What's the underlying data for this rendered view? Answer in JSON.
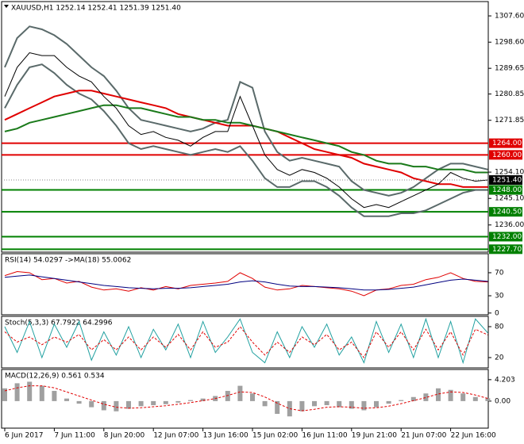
{
  "chart_data": [
    {
      "type": "price",
      "title": "XAUUSD,H1  1252.14 1252.41 1251.39 1251.40",
      "ylim": [
        1226.7,
        1312.5
      ],
      "yticks": [
        {
          "value": 1307.6,
          "label": "1307.60"
        },
        {
          "value": 1298.6,
          "label": "1298.60"
        },
        {
          "value": 1289.65,
          "label": "1289.65"
        },
        {
          "value": 1280.85,
          "label": "1280.85"
        },
        {
          "value": 1271.85,
          "label": "1271.85"
        },
        {
          "value": 1254.1,
          "label": "1254.10"
        },
        {
          "value": 1245.1,
          "label": "1245.10"
        },
        {
          "value": 1236,
          "label": "1236.00"
        }
      ],
      "levels": [
        {
          "value": 1264,
          "label": "1264.00",
          "color": "#e00000"
        },
        {
          "value": 1260,
          "label": "1260.00",
          "color": "#e00000"
        },
        {
          "value": 1248,
          "label": "1248.00",
          "color": "#008000"
        },
        {
          "value": 1240.5,
          "label": "1240.50",
          "color": "#008000"
        },
        {
          "value": 1232,
          "label": "1232.00",
          "color": "#008000"
        },
        {
          "value": 1227.7,
          "label": "1227.70",
          "color": "#008000"
        }
      ],
      "current": {
        "value": 1251.4,
        "label": "1251.40"
      },
      "series": [
        {
          "color": "#5a6a6a",
          "width": 2,
          "values": [
            1290,
            1300,
            1304,
            1303,
            1301,
            1298,
            1294,
            1290,
            1287,
            1282,
            1276,
            1272,
            1271,
            1270,
            1269,
            1268,
            1269,
            1271,
            1272,
            1285,
            1283,
            1268,
            1261,
            1258,
            1259,
            1258,
            1257,
            1256,
            1251,
            1248,
            1247,
            1246,
            1247,
            1249,
            1252,
            1255,
            1257,
            1257,
            1256,
            1255
          ]
        },
        {
          "color": "#5a6a6a",
          "width": 2,
          "values": [
            1276,
            1284,
            1290,
            1291,
            1288,
            1284,
            1281,
            1279,
            1275,
            1270,
            1264,
            1262,
            1263,
            1262,
            1261,
            1260,
            1261,
            1262,
            1261,
            1263,
            1258,
            1252,
            1249,
            1249,
            1251,
            1251,
            1249,
            1246,
            1242,
            1239,
            1239,
            1239,
            1240,
            1240,
            1241,
            1243,
            1245,
            1247,
            1248,
            1248
          ]
        },
        {
          "color": "#e00000",
          "width": 2,
          "values": [
            1272,
            1274,
            1276,
            1278,
            1280,
            1281,
            1282,
            1282,
            1281,
            1280,
            1279,
            1278,
            1277,
            1276,
            1274,
            1273,
            1272,
            1271,
            1270,
            1270,
            1270,
            1269,
            1268,
            1266,
            1264,
            1262,
            1261,
            1260,
            1259,
            1257,
            1256,
            1255,
            1254,
            1252,
            1251,
            1250,
            1250,
            1249,
            1249,
            1249
          ]
        },
        {
          "color": "#1a7a1a",
          "width": 2,
          "values": [
            1268,
            1269,
            1271,
            1272,
            1273,
            1274,
            1275,
            1276,
            1277,
            1277,
            1276,
            1276,
            1275,
            1274,
            1273,
            1273,
            1272,
            1272,
            1271,
            1271,
            1270,
            1269,
            1268,
            1267,
            1266,
            1265,
            1264,
            1263,
            1261,
            1260,
            1258,
            1257,
            1257,
            1256,
            1256,
            1255,
            1255,
            1255,
            1254,
            1254
          ]
        },
        {
          "color": "#000000",
          "width": 1,
          "values": [
            1280,
            1290,
            1295,
            1294,
            1294,
            1290,
            1287,
            1285,
            1280,
            1276,
            1270,
            1267,
            1268,
            1266,
            1265,
            1263,
            1266,
            1268,
            1268,
            1280,
            1270,
            1260,
            1255,
            1253,
            1255,
            1254,
            1252,
            1249,
            1245,
            1242,
            1243,
            1242,
            1244,
            1246,
            1248,
            1250,
            1254,
            1252,
            1251,
            1251.4
          ]
        }
      ]
    },
    {
      "type": "line",
      "title": "RSI(14) 54.0297  ->MA(18) 55.0062",
      "ylim": [
        -3,
        103
      ],
      "yticks": [
        70,
        30,
        0
      ],
      "series": [
        {
          "color": "#e00000",
          "width": 1,
          "values": [
            65,
            72,
            70,
            58,
            60,
            52,
            55,
            45,
            40,
            42,
            38,
            44,
            40,
            46,
            42,
            48,
            50,
            52,
            55,
            70,
            60,
            45,
            40,
            42,
            48,
            46,
            44,
            42,
            38,
            30,
            40,
            42,
            48,
            50,
            58,
            62,
            70,
            60,
            55,
            54
          ]
        },
        {
          "color": "#000080",
          "width": 1,
          "values": [
            62,
            64,
            66,
            63,
            60,
            57,
            54,
            51,
            48,
            46,
            44,
            43,
            42,
            43,
            43,
            44,
            46,
            48,
            50,
            54,
            56,
            54,
            50,
            47,
            46,
            46,
            45,
            44,
            42,
            40,
            40,
            41,
            43,
            45,
            49,
            53,
            57,
            59,
            57,
            55
          ]
        }
      ]
    },
    {
      "type": "line",
      "title": "Stoch(5,3,3) 67.7922 64.2996",
      "ylim": [
        0,
        100
      ],
      "yticks": [
        80,
        20
      ],
      "series": [
        {
          "color": "#20a0a0",
          "width": 1,
          "values": [
            80,
            30,
            90,
            20,
            85,
            40,
            90,
            15,
            70,
            25,
            80,
            20,
            75,
            35,
            85,
            20,
            90,
            30,
            60,
            95,
            30,
            10,
            70,
            20,
            80,
            40,
            85,
            25,
            60,
            10,
            90,
            30,
            85,
            20,
            95,
            20,
            90,
            10,
            95,
            68
          ]
        },
        {
          "color": "#e00000",
          "width": 1,
          "dash": true,
          "values": [
            70,
            50,
            60,
            45,
            60,
            50,
            65,
            35,
            55,
            35,
            60,
            35,
            60,
            40,
            65,
            35,
            70,
            40,
            50,
            80,
            50,
            25,
            50,
            30,
            60,
            45,
            65,
            35,
            50,
            20,
            70,
            40,
            70,
            35,
            75,
            35,
            70,
            25,
            75,
            64
          ]
        }
      ]
    },
    {
      "type": "macd",
      "title": "MACD(12,26,9) 0.561 0.534",
      "ylim": [
        -5.3,
        6.2
      ],
      "yticks": [
        {
          "value": 4.203,
          "label": "4.203"
        },
        {
          "value": 0,
          "label": "0.00"
        }
      ],
      "categories": [
        "6 Jun 2017",
        null,
        null,
        null,
        "7 Jun 11:00",
        null,
        null,
        null,
        "8 Jun 20:00",
        null,
        null,
        null,
        "12 Jun 07:00",
        null,
        null,
        null,
        "13 Jun 16:00",
        null,
        null,
        null,
        "15 Jun 02:00",
        null,
        null,
        null,
        "16 Jun 11:00",
        null,
        null,
        null,
        "19 Jun 21:00",
        null,
        null,
        null,
        "21 Jun 07:00",
        null,
        null,
        null,
        "22 Jun 16:00",
        null,
        null,
        null
      ],
      "bar_color": "#a0a0a0",
      "values": [
        2.5,
        3.5,
        3.8,
        3.0,
        2.0,
        0.5,
        -0.5,
        -1.2,
        -1.8,
        -2.0,
        -1.5,
        -1.0,
        -0.8,
        -0.6,
        -0.3,
        0.2,
        0.5,
        1.0,
        2.0,
        3.0,
        1.5,
        -1.0,
        -2.5,
        -3.0,
        -2.0,
        -1.0,
        -0.8,
        -1.2,
        -1.5,
        -1.8,
        -1.2,
        -0.5,
        0.2,
        0.8,
        1.5,
        2.5,
        2.2,
        1.5,
        0.8,
        0.561
      ],
      "series": [
        {
          "color": "#e00000",
          "width": 1,
          "dash": true,
          "values": [
            2.0,
            2.6,
            3.0,
            3.0,
            2.6,
            1.8,
            1.0,
            0.2,
            -0.6,
            -1.2,
            -1.4,
            -1.3,
            -1.1,
            -0.9,
            -0.6,
            -0.3,
            0.1,
            0.5,
            1.1,
            1.8,
            1.7,
            0.8,
            -0.4,
            -1.5,
            -1.9,
            -1.6,
            -1.2,
            -1.1,
            -1.2,
            -1.4,
            -1.3,
            -1.0,
            -0.5,
            0.1,
            0.7,
            1.4,
            1.8,
            1.7,
            1.2,
            0.534
          ]
        }
      ]
    }
  ]
}
